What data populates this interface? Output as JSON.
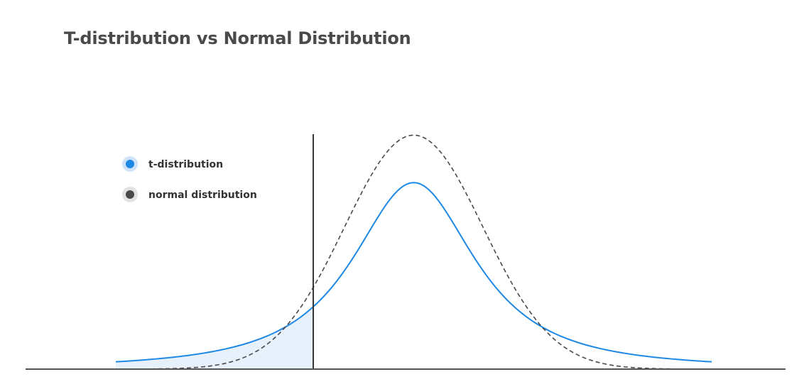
{
  "chart_data": {
    "type": "line",
    "title": "T-distribution vs Normal Distribution",
    "xlabel": "",
    "ylabel": "",
    "xlim": [
      -4.3,
      4.3
    ],
    "ylim": [
      0,
      0.42
    ],
    "grid": false,
    "legend_placement": "top-left",
    "critical_value": -1.45,
    "shaded_region": "left tail of t-distribution up to critical value",
    "series": [
      {
        "name": "t-distribution",
        "color": "#1e88e5",
        "style": "solid",
        "x": [
          -4.3,
          -4.0,
          -3.5,
          -3.0,
          -2.5,
          -2.0,
          -1.5,
          -1.0,
          -0.5,
          0.0,
          0.5,
          1.0,
          1.5,
          2.0,
          2.5,
          3.0,
          3.5,
          4.0,
          4.3
        ],
        "y": [
          0.016,
          0.019,
          0.027,
          0.038,
          0.056,
          0.084,
          0.132,
          0.192,
          0.262,
          0.318,
          0.262,
          0.192,
          0.132,
          0.084,
          0.056,
          0.038,
          0.027,
          0.019,
          0.016
        ]
      },
      {
        "name": "normal distribution",
        "color": "#4a4a4a",
        "style": "dashed",
        "x": [
          -4.3,
          -4.0,
          -3.5,
          -3.0,
          -2.5,
          -2.0,
          -1.5,
          -1.0,
          -0.5,
          0.0,
          0.5,
          1.0,
          1.5,
          2.0,
          2.5,
          3.0,
          3.5,
          4.0,
          4.3
        ],
        "y": [
          0.0,
          0.0001,
          0.0009,
          0.0044,
          0.0175,
          0.054,
          0.1295,
          0.242,
          0.352,
          0.3989,
          0.352,
          0.242,
          0.1295,
          0.054,
          0.0175,
          0.0044,
          0.0009,
          0.0001,
          0.0
        ]
      }
    ]
  },
  "colors": {
    "t_line": "#1e88e5",
    "t_fill": "#e6f1fb",
    "normal_line": "#4a4a4a",
    "axis": "#555555",
    "legend_text": "#333333"
  }
}
